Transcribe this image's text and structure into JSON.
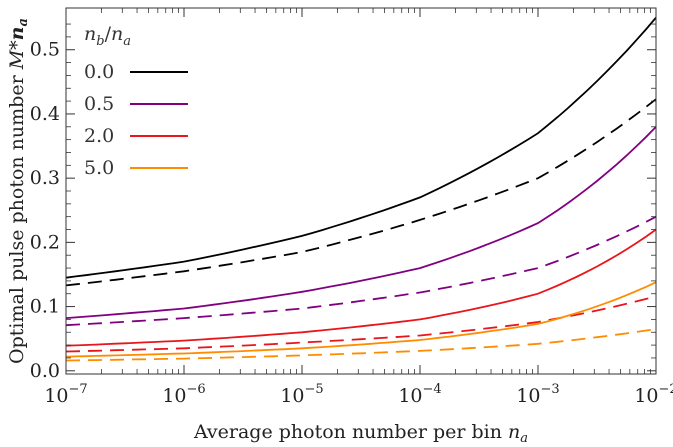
{
  "chart_data": {
    "type": "line",
    "xscale": "log",
    "xlim": [
      1e-07,
      0.01
    ],
    "ylim": [
      -0.005,
      0.565
    ],
    "xlabel_text": "Average photon number per bin ",
    "xlabel_var": "n",
    "xlabel_sub": "a",
    "ylabel_text": "Optimal pulse photon number ",
    "ylabel_var": "M*",
    "ylabel_var2": "n",
    "ylabel_sub": "a",
    "x_ticks": [
      {
        "value": 1e-07,
        "base": "10",
        "exp": "−7"
      },
      {
        "value": 1e-06,
        "base": "10",
        "exp": "−6"
      },
      {
        "value": 1e-05,
        "base": "10",
        "exp": "−5"
      },
      {
        "value": 0.0001,
        "base": "10",
        "exp": "−4"
      },
      {
        "value": 0.001,
        "base": "10",
        "exp": "−3"
      },
      {
        "value": 0.01,
        "base": "10",
        "exp": "−2"
      }
    ],
    "y_ticks": [
      {
        "value": 0.0,
        "label": "0.0"
      },
      {
        "value": 0.1,
        "label": "0.1"
      },
      {
        "value": 0.2,
        "label": "0.2"
      },
      {
        "value": 0.3,
        "label": "0.3"
      },
      {
        "value": 0.4,
        "label": "0.4"
      },
      {
        "value": 0.5,
        "label": "0.5"
      }
    ],
    "legend": {
      "title": "n_b/n_a",
      "placement": "top-left",
      "entries": [
        {
          "label": "0.0",
          "color": "#000000"
        },
        {
          "label": "0.5",
          "color": "#800080"
        },
        {
          "label": "2.0",
          "color": "#e8161b"
        },
        {
          "label": "5.0",
          "color": "#ff8c00"
        }
      ]
    },
    "x": [
      1e-07,
      1e-06,
      1e-05,
      0.0001,
      0.001,
      0.01
    ],
    "series": [
      {
        "name": "0.0",
        "style": "solid",
        "color": "#000000",
        "values": [
          0.145,
          0.17,
          0.21,
          0.27,
          0.37,
          0.55
        ]
      },
      {
        "name": "0.0",
        "style": "dashed",
        "color": "#000000",
        "values": [
          0.133,
          0.155,
          0.185,
          0.235,
          0.3,
          0.423
        ]
      },
      {
        "name": "0.5",
        "style": "solid",
        "color": "#800080",
        "values": [
          0.082,
          0.097,
          0.123,
          0.16,
          0.23,
          0.38
        ]
      },
      {
        "name": "0.5",
        "style": "dashed",
        "color": "#800080",
        "values": [
          0.071,
          0.082,
          0.097,
          0.122,
          0.16,
          0.24
        ]
      },
      {
        "name": "2.0",
        "style": "solid",
        "color": "#e8161b",
        "values": [
          0.039,
          0.047,
          0.06,
          0.08,
          0.12,
          0.22
        ]
      },
      {
        "name": "2.0",
        "style": "dashed",
        "color": "#e8161b",
        "values": [
          0.03,
          0.035,
          0.044,
          0.055,
          0.076,
          0.116
        ]
      },
      {
        "name": "5.0",
        "style": "solid",
        "color": "#ff8c00",
        "values": [
          0.022,
          0.027,
          0.035,
          0.048,
          0.073,
          0.138
        ]
      },
      {
        "name": "5.0",
        "style": "dashed",
        "color": "#ff8c00",
        "values": [
          0.016,
          0.019,
          0.024,
          0.031,
          0.042,
          0.065
        ]
      }
    ]
  }
}
